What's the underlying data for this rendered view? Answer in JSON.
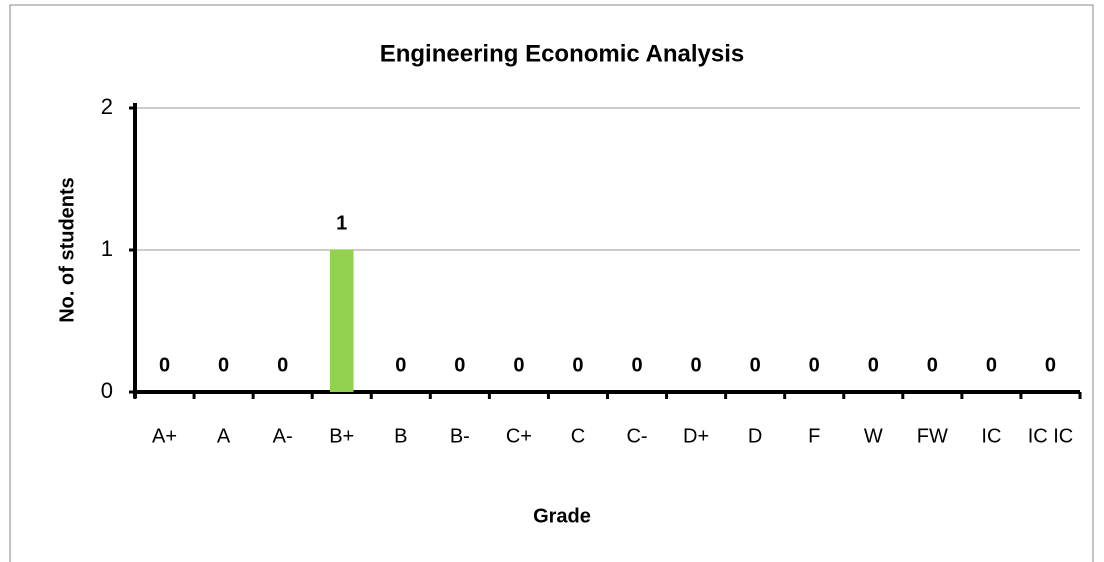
{
  "chart_data": {
    "type": "bar",
    "title": "Engineering Economic Analysis",
    "x_label": "Grade",
    "y_label": "No. of students",
    "categories": [
      "A+",
      "A",
      "A-",
      "B+",
      "B",
      "B-",
      "C+",
      "C",
      "C-",
      "D+",
      "D",
      "F",
      "W",
      "FW",
      "IC",
      "IC IC"
    ],
    "values": [
      0,
      0,
      0,
      1,
      0,
      0,
      0,
      0,
      0,
      0,
      0,
      0,
      0,
      0,
      0,
      0
    ],
    "color": "#92d050",
    "ylim": [
      0,
      2
    ],
    "yticks": [
      0,
      1,
      2
    ],
    "grid": true
  }
}
